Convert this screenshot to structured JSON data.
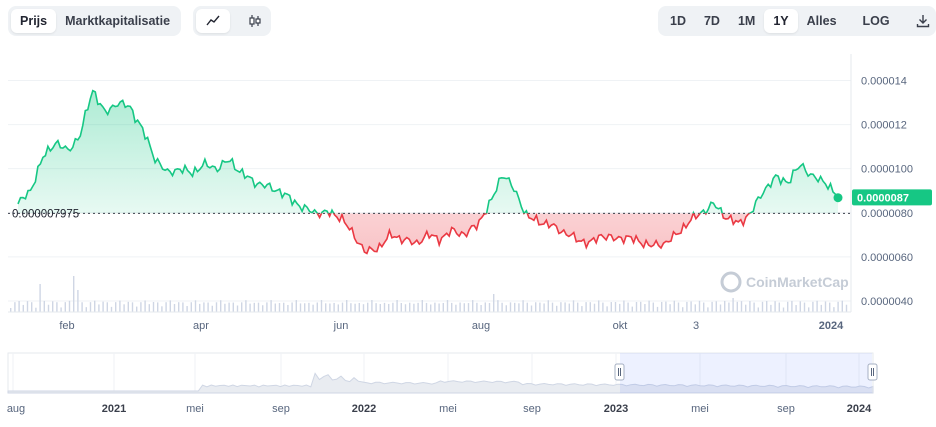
{
  "toolbar": {
    "view_tabs": [
      {
        "label": "Prijs",
        "active": true
      },
      {
        "label": "Marktkapitalisatie",
        "active": false
      }
    ],
    "chart_types": [
      {
        "icon": "line-chart-icon",
        "active": true
      },
      {
        "icon": "candlestick-icon",
        "active": false
      }
    ],
    "ranges": [
      {
        "label": "1D"
      },
      {
        "label": "7D"
      },
      {
        "label": "1M"
      },
      {
        "label": "1Y",
        "active": true
      },
      {
        "label": "Alles"
      }
    ],
    "log_label": "LOG",
    "download_icon": "download-icon"
  },
  "chart": {
    "reference_price": "0.000007975",
    "current_price": "0.0000087",
    "watermark": "CoinMarketCap",
    "y_ticks": [
      "0.000014",
      "0.000012",
      "0.0000100",
      "0.0000080",
      "0.0000060",
      "0.0000040"
    ],
    "x_ticks": [
      "feb",
      "apr",
      "jun",
      "aug",
      "okt",
      "3",
      "2024"
    ],
    "colors": {
      "up": "#16c784",
      "down": "#ea3943",
      "badge": "#16c784",
      "grid": "#eff2f5",
      "volume": "#cfd6e4"
    }
  },
  "chart_data": {
    "type": "line",
    "title": "",
    "ylabel": "",
    "ylim": [
      3.5e-06,
      1.52e-05
    ],
    "reference_value": 7.975e-06,
    "x_labels": [
      "feb",
      "apr",
      "jun",
      "aug",
      "okt",
      "3",
      "2024"
    ],
    "series": [
      {
        "values": [
          8.4e-06,
          9e-06,
          1.05e-05,
          1.12e-05,
          1.08e-05,
          1.15e-05,
          1.36e-05,
          1.25e-05,
          1.3e-05,
          1.28e-05,
          1.18e-05,
          1.05e-05,
          9.8e-06,
          1e-05,
          9.8e-06,
          1.02e-05,
          1e-05,
          1.04e-05,
          9.8e-06,
          9.4e-06,
          9.2e-06,
          9e-06,
          8.6e-06,
          8.2e-06,
          8e-06,
          8e-06,
          7.8e-06,
          7e-06,
          6.2e-06,
          6.4e-06,
          7e-06,
          6.8e-06,
          6.6e-06,
          7e-06,
          6.8e-06,
          7.2e-06,
          7e-06,
          7.5e-06,
          8.4e-06,
          9.8e-06,
          9e-06,
          7.8e-06,
          7.6e-06,
          7.4e-06,
          7.1e-06,
          6.8e-06,
          6.6e-06,
          7e-06,
          6.8e-06,
          6.9e-06,
          6.7e-06,
          6.5e-06,
          6.6e-06,
          7e-06,
          7.6e-06,
          8e-06,
          8.4e-06,
          7.8e-06,
          7.5e-06,
          8e-06,
          9e-06,
          9.6e-06,
          9.4e-06,
          1.02e-05,
          9.6e-06,
          9.4e-06,
          8.7e-06
        ]
      }
    ],
    "navigator_x_labels": [
      "aug",
      "2021",
      "mei",
      "sep",
      "2022",
      "mei",
      "sep",
      "2023",
      "mei",
      "sep",
      "2024"
    ]
  }
}
